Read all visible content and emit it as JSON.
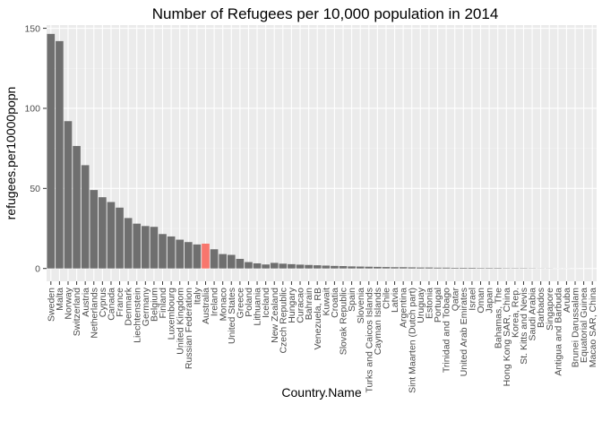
{
  "chart_data": {
    "type": "bar",
    "title": "Number of Refugees per 10,000 population in 2014",
    "xlabel": "Country.Name",
    "ylabel": "refugees.per10000popn",
    "ylim": [
      -8,
      152
    ],
    "yticks": [
      0,
      50,
      100,
      150
    ],
    "grid": true,
    "colors": {
      "bar": "#6f6f6f",
      "highlight": "#f8766d",
      "panel": "#ebebeb",
      "grid_major": "#ffffff",
      "grid_minor": "#f4f4f4",
      "text": "#4d4d4d"
    },
    "highlight_category": "Australia",
    "categories": [
      "Sweden",
      "Malta",
      "Norway",
      "Switzerland",
      "Austria",
      "Netherlands",
      "Cyprus",
      "Canada",
      "France",
      "Denmark",
      "Liechtenstein",
      "Germany",
      "Belgium",
      "Finland",
      "Luxembourg",
      "United Kingdom",
      "Russian Federation",
      "Italy",
      "Australia",
      "Ireland",
      "Monaco",
      "United States",
      "Greece",
      "Poland",
      "Lithuania",
      "Iceland",
      "New Zealand",
      "Czech Republic",
      "Hungary",
      "Curacao",
      "Bahrain",
      "Venezuela, RB",
      "Kuwait",
      "Croatia",
      "Slovak Republic",
      "Spain",
      "Slovenia",
      "Turks and Caicos Islands",
      "Cayman Islands",
      "Chile",
      "Latvia",
      "Argentina",
      "Sint Maarten (Dutch part)",
      "Uruguay",
      "Estonia",
      "Portugal",
      "Trinidad and Tobago",
      "Qatar",
      "United Arab Emirates",
      "Israel",
      "Oman",
      "Japan",
      "Bahamas, The",
      "Hong Kong SAR, China",
      "Korea, Rep.",
      "St. Kitts and Nevis",
      "Saudi Arabia",
      "Barbados",
      "Singapore",
      "Antigua and Barbuda",
      "Aruba",
      "Brunei Darussalam",
      "Equatorial Guinea",
      "Macao SAR, China"
    ],
    "values": [
      146.5,
      142,
      92,
      76.5,
      64.5,
      49,
      44.5,
      41.5,
      38,
      31.5,
      28,
      26.5,
      26,
      21.5,
      20,
      18,
      16.5,
      15,
      15.5,
      12,
      9,
      8.5,
      6,
      4,
      3.2,
      2.5,
      3.5,
      3,
      2.7,
      2.4,
      2.2,
      2,
      1.8,
      1.6,
      1.5,
      1.3,
      1.2,
      1.1,
      1,
      0.9,
      0.8,
      0.8,
      0.7,
      0.6,
      0.6,
      0.5,
      0.5,
      0.4,
      0.4,
      0.4,
      0.3,
      0.3,
      0.3,
      0.2,
      0.2,
      0.2,
      0.15,
      0.1,
      0.1,
      0.05,
      0.05,
      0.03,
      0.02,
      0.01
    ]
  }
}
